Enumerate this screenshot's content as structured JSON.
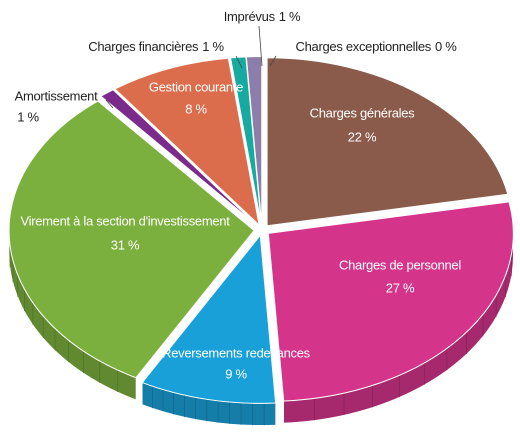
{
  "chart_data": {
    "type": "pie",
    "categories": [
      "Charges générales",
      "Charges de personnel",
      "Reversements redevances",
      "Virement à la section d'investissement",
      "Amortissement",
      "Gestion courante",
      "Charges financières",
      "Imprévus",
      "Charges exceptionnelles"
    ],
    "values": [
      22,
      27,
      9,
      31,
      1,
      8,
      1,
      1,
      0
    ],
    "value_labels": [
      "22 %",
      "27 %",
      "9 %",
      "31 %",
      "1 %",
      "8 %",
      "1 %",
      "1 %",
      "0 %"
    ],
    "colors": [
      "#8a5a4a",
      "#d4358a",
      "#19a0d8",
      "#7cb03e",
      "#7a2b8c",
      "#dc6d4c",
      "#17aaa0",
      "#8c7dab",
      "#6c6c6c"
    ]
  }
}
